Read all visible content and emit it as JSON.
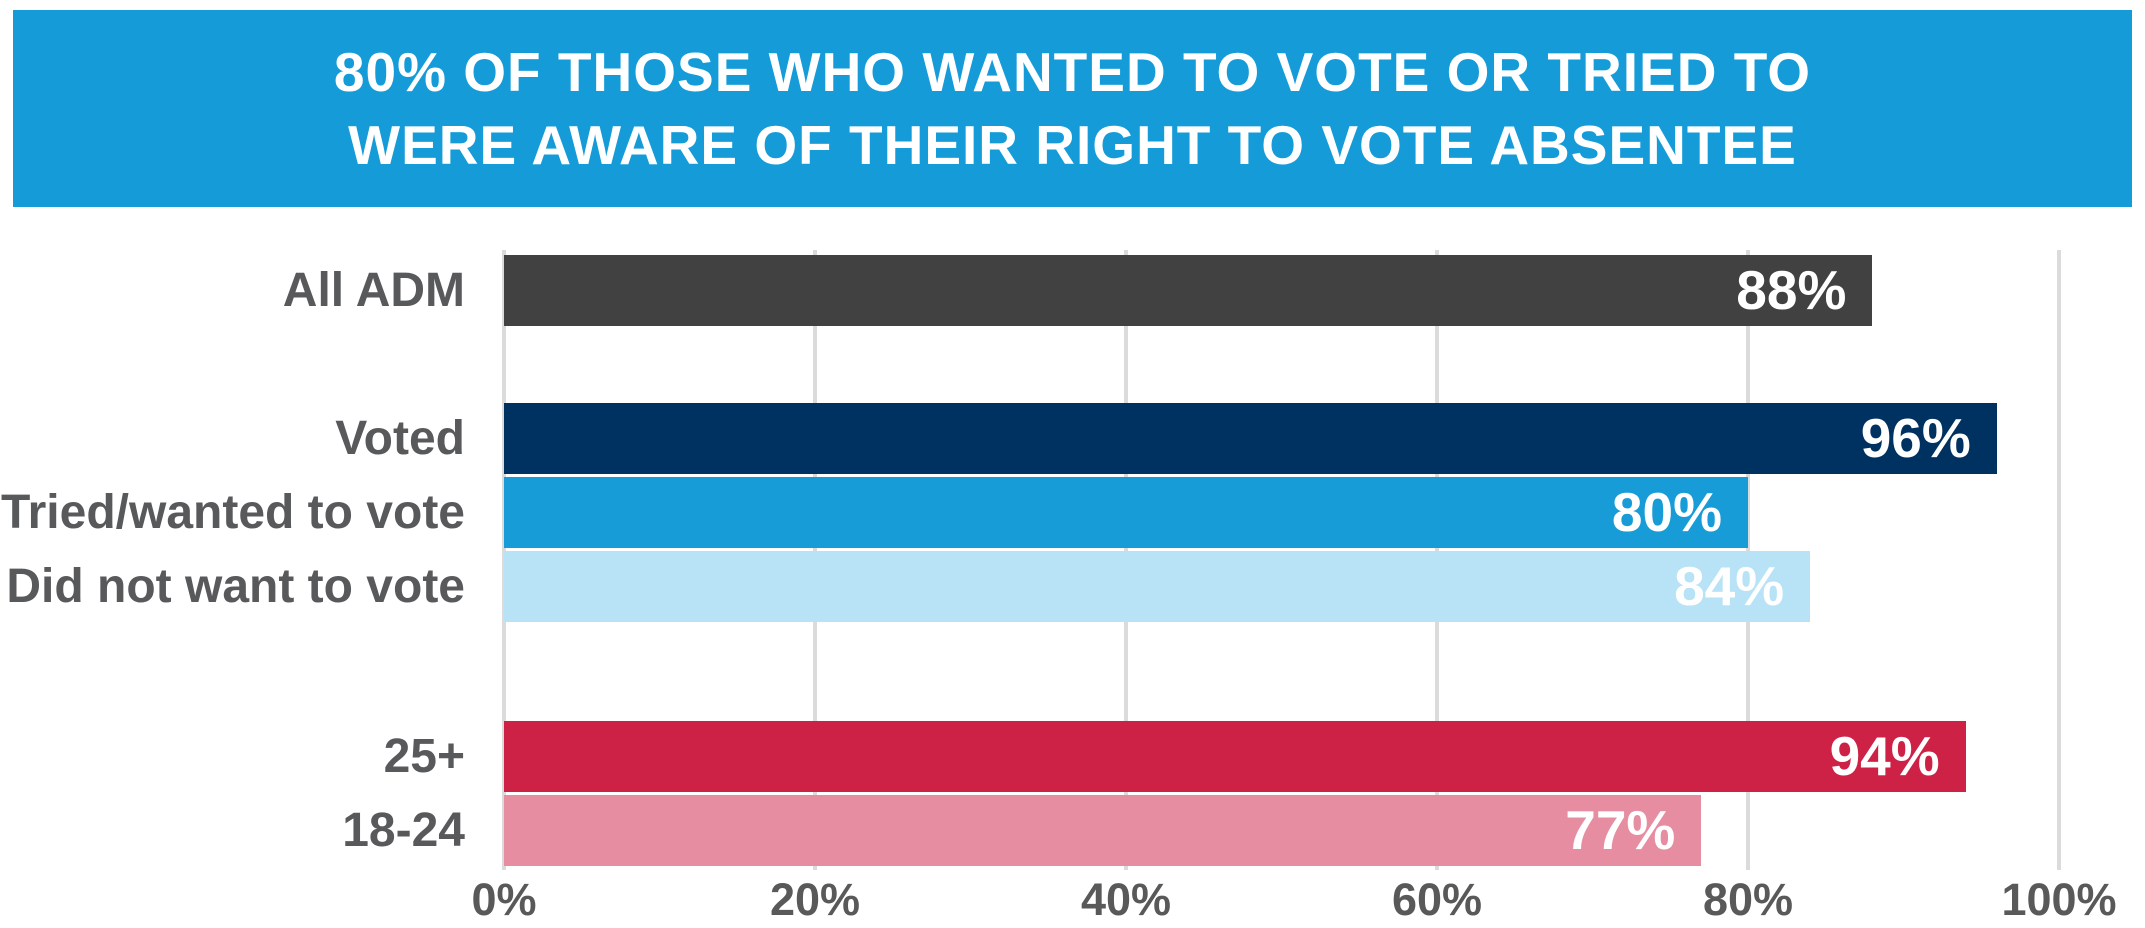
{
  "title": {
    "line1": "80% OF THOSE WHO WANTED TO VOTE OR TRIED TO",
    "line2": "WERE AWARE OF THEIR RIGHT TO VOTE ABSENTEE"
  },
  "colors": {
    "banner_bg": "#159CD8",
    "title_text": "#FFFFFF",
    "category_label_text": "#58595B",
    "tick_label_text": "#595959",
    "value_label_text": "#FFFFFF",
    "gridline": "#DBDBDB",
    "background": "#FFFFFF"
  },
  "chart_data": {
    "type": "bar",
    "orientation": "horizontal",
    "title": "80% OF THOSE WHO WANTED TO VOTE OR TRIED TO WERE AWARE OF THEIR RIGHT TO VOTE ABSENTEE",
    "xlabel": "",
    "ylabel": "",
    "xlim": [
      0,
      100
    ],
    "grid": true,
    "legend": false,
    "x_ticks": [
      "0%",
      "20%",
      "40%",
      "60%",
      "80%",
      "100%"
    ],
    "x_tick_values": [
      0,
      20,
      40,
      60,
      80,
      100
    ],
    "categories": [
      "All ADM",
      "Voted",
      "Tried/wanted to vote",
      "Did not want to vote",
      "25+",
      "18-24"
    ],
    "values": [
      88,
      96,
      80,
      84,
      94,
      77
    ],
    "value_labels": [
      "88%",
      "96%",
      "80%",
      "84%",
      "94%",
      "77%"
    ],
    "bar_colors": [
      "#414141",
      "#003261",
      "#189CD8",
      "#B8E2F6",
      "#CD2145",
      "#E78DA2"
    ],
    "groups": [
      {
        "name": "overall",
        "categories": [
          "All ADM"
        ]
      },
      {
        "name": "voting-status",
        "categories": [
          "Voted",
          "Tried/wanted to vote",
          "Did not want to vote"
        ]
      },
      {
        "name": "age",
        "categories": [
          "25+",
          "18-24"
        ]
      }
    ]
  }
}
